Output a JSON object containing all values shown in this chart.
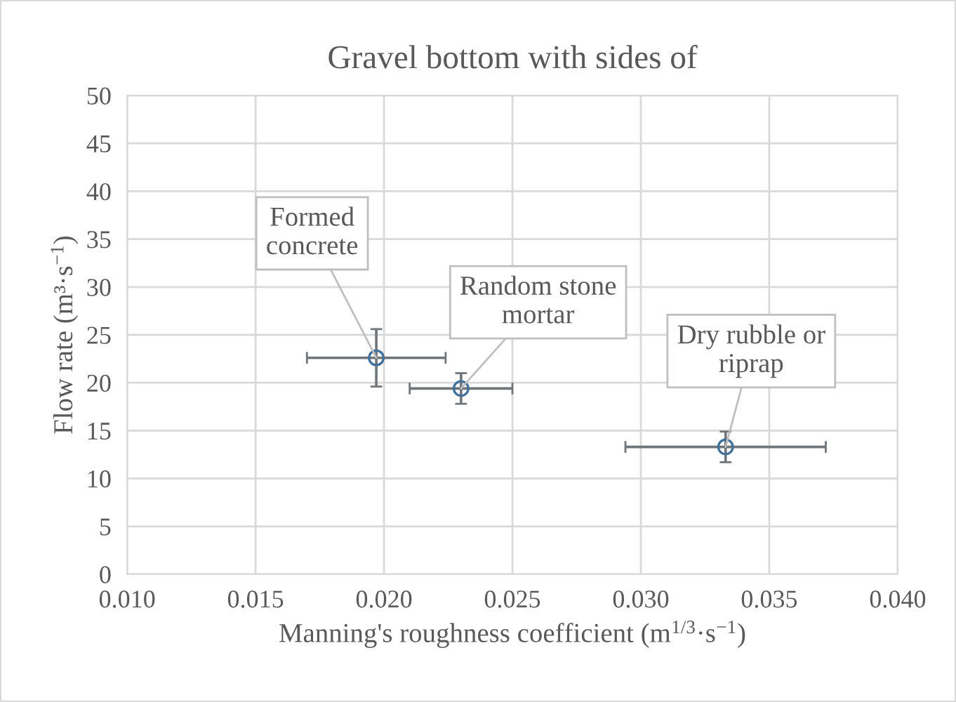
{
  "chart_data": {
    "type": "scatter",
    "title": "Gravel bottom with sides of",
    "xlabel": "Manning's roughness coefficient (m$^{1/3}$·s$^{−1}$)",
    "ylabel": "Flow rate (m³·s$^{−1}$)",
    "x": [
      0.0197,
      0.023,
      0.0333
    ],
    "values": [
      22.6,
      19.4,
      13.3
    ],
    "color": "#41719c",
    "errors": [
      3.0,
      1.6,
      1.6
    ],
    "xerrors": [
      0.0027,
      0.002,
      0.0039
    ],
    "marker": "circle",
    "grid": true,
    "legend": false,
    "xlim": [
      0.01,
      0.04
    ],
    "xticks": [
      {
        "value": 0.01,
        "label": "0.010"
      },
      {
        "value": 0.015,
        "label": "0.015"
      },
      {
        "value": 0.02,
        "label": "0.020"
      },
      {
        "value": 0.025,
        "label": "0.025"
      },
      {
        "value": 0.03,
        "label": "0.030"
      },
      {
        "value": 0.035,
        "label": "0.035"
      },
      {
        "value": 0.04,
        "label": "0.040"
      }
    ],
    "ylim": [
      0,
      50
    ],
    "yticks": [
      0,
      5,
      10,
      15,
      20,
      25,
      30,
      35,
      40,
      45,
      50
    ],
    "annotations": [
      {
        "text": "Formed\nconcrete",
        "x": 0.0197,
        "y": 22.6
      },
      {
        "text": "Random stone\nmortar",
        "x": 0.023,
        "y": 19.4
      },
      {
        "text": "Dry rubble or\nriprap",
        "x": 0.0333,
        "y": 13.3
      }
    ]
  }
}
